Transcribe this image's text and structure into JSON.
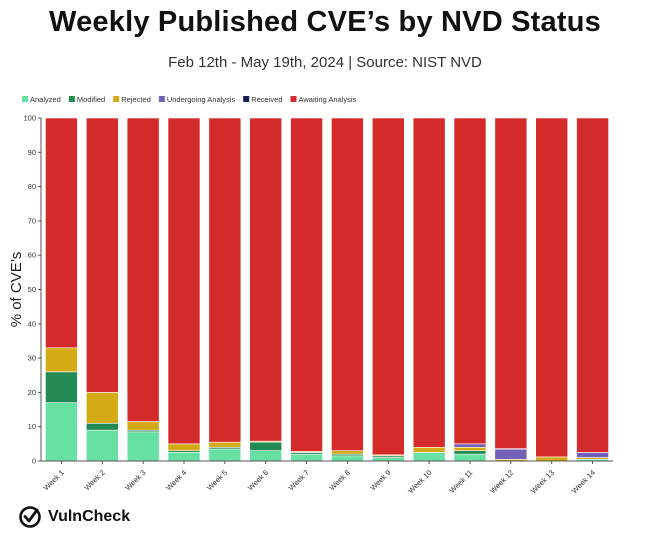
{
  "header": {
    "title": "Weekly Published CVE’s by NVD Status",
    "subtitle": "Feb 12th - May 19th, 2024 | Source: NIST NVD"
  },
  "brand": {
    "name": "VulnCheck",
    "logo_icon": "vulncheck-logo-icon"
  },
  "chart_data": {
    "type": "bar",
    "stacked": true,
    "title": "Weekly Published CVE’s by NVD Status",
    "xlabel": "",
    "ylabel": "% of CVE’s",
    "ylim": [
      0,
      100
    ],
    "yticks": [
      0,
      10,
      20,
      30,
      40,
      50,
      60,
      70,
      80,
      90,
      100
    ],
    "grid": false,
    "legend_position": "top-left",
    "categories": [
      "Week 1",
      "Week 2",
      "Week 3",
      "Week 4",
      "Week 5",
      "Week 6",
      "Week 7",
      "Week 8",
      "Week 9",
      "Week 10",
      "Week 11",
      "Week 12",
      "Week 13",
      "Week 14"
    ],
    "series": [
      {
        "name": "Analyzed",
        "color": "#66e0a3",
        "values": [
          17,
          9,
          8.5,
          2.5,
          3.5,
          3,
          2,
          1.5,
          1,
          2.5,
          2,
          0,
          0,
          0.5
        ]
      },
      {
        "name": "Modified",
        "color": "#238a55",
        "values": [
          9,
          2,
          0.5,
          0.5,
          0.5,
          2.5,
          0.5,
          0.5,
          0.5,
          0,
          1,
          0,
          0,
          0
        ]
      },
      {
        "name": "Rejected",
        "color": "#d4aa17",
        "values": [
          7,
          9,
          2.5,
          2,
          1.5,
          0.3,
          0.3,
          1,
          0.3,
          1.5,
          1,
          0.5,
          1.2,
          0.5
        ]
      },
      {
        "name": "Undergoing Analysis",
        "color": "#7360b8",
        "values": [
          0,
          0,
          0,
          0,
          0,
          0,
          0,
          0,
          0,
          0,
          1,
          3,
          0,
          1.5
        ]
      },
      {
        "name": "Received",
        "color": "#1a1a55",
        "values": [
          0,
          0,
          0,
          0,
          0,
          0,
          0,
          0,
          0,
          0,
          0,
          0.1,
          0,
          0
        ]
      },
      {
        "name": "Awaiting Analysis",
        "color": "#d42a2a",
        "values": [
          67,
          80,
          88.5,
          95,
          94.5,
          94.2,
          97.2,
          97,
          98.2,
          96,
          95,
          96.4,
          98.8,
          97.5
        ]
      }
    ]
  }
}
